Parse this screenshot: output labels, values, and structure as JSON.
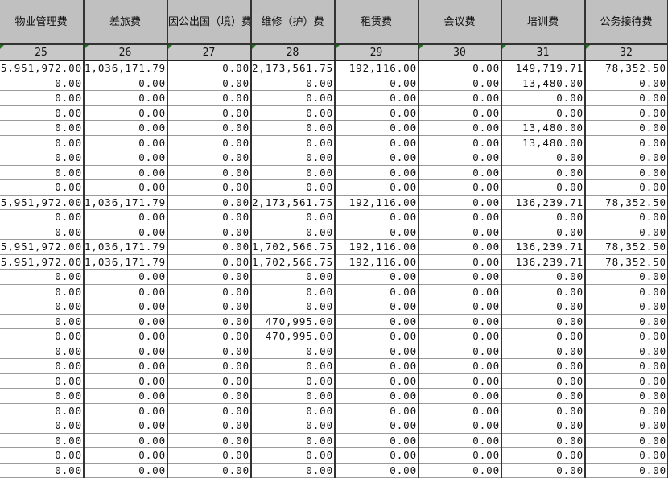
{
  "headers": [
    "物业管理费",
    "差旅费",
    "因公出国（境）费用",
    "维修（护）费",
    "租赁费",
    "会议费",
    "培训费",
    "公务接待费"
  ],
  "column_numbers": [
    "25",
    "26",
    "27",
    "28",
    "29",
    "30",
    "31",
    "32"
  ],
  "colors": {
    "header_bg": "#c0c0c0",
    "grid_line": "#333333",
    "marker": "#1a7a1a"
  },
  "rows": [
    [
      "5,951,972.00",
      "1,036,171.79",
      "0.00",
      "2,173,561.75",
      "192,116.00",
      "0.00",
      "149,719.71",
      "78,352.50"
    ],
    [
      "0.00",
      "0.00",
      "0.00",
      "0.00",
      "0.00",
      "0.00",
      "13,480.00",
      "0.00"
    ],
    [
      "0.00",
      "0.00",
      "0.00",
      "0.00",
      "0.00",
      "0.00",
      "0.00",
      "0.00"
    ],
    [
      "0.00",
      "0.00",
      "0.00",
      "0.00",
      "0.00",
      "0.00",
      "0.00",
      "0.00"
    ],
    [
      "0.00",
      "0.00",
      "0.00",
      "0.00",
      "0.00",
      "0.00",
      "13,480.00",
      "0.00"
    ],
    [
      "0.00",
      "0.00",
      "0.00",
      "0.00",
      "0.00",
      "0.00",
      "13,480.00",
      "0.00"
    ],
    [
      "0.00",
      "0.00",
      "0.00",
      "0.00",
      "0.00",
      "0.00",
      "0.00",
      "0.00"
    ],
    [
      "0.00",
      "0.00",
      "0.00",
      "0.00",
      "0.00",
      "0.00",
      "0.00",
      "0.00"
    ],
    [
      "0.00",
      "0.00",
      "0.00",
      "0.00",
      "0.00",
      "0.00",
      "0.00",
      "0.00"
    ],
    [
      "5,951,972.00",
      "1,036,171.79",
      "0.00",
      "2,173,561.75",
      "192,116.00",
      "0.00",
      "136,239.71",
      "78,352.50"
    ],
    [
      "0.00",
      "0.00",
      "0.00",
      "0.00",
      "0.00",
      "0.00",
      "0.00",
      "0.00"
    ],
    [
      "0.00",
      "0.00",
      "0.00",
      "0.00",
      "0.00",
      "0.00",
      "0.00",
      "0.00"
    ],
    [
      "5,951,972.00",
      "1,036,171.79",
      "0.00",
      "1,702,566.75",
      "192,116.00",
      "0.00",
      "136,239.71",
      "78,352.50"
    ],
    [
      "5,951,972.00",
      "1,036,171.79",
      "0.00",
      "1,702,566.75",
      "192,116.00",
      "0.00",
      "136,239.71",
      "78,352.50"
    ],
    [
      "0.00",
      "0.00",
      "0.00",
      "0.00",
      "0.00",
      "0.00",
      "0.00",
      "0.00"
    ],
    [
      "0.00",
      "0.00",
      "0.00",
      "0.00",
      "0.00",
      "0.00",
      "0.00",
      "0.00"
    ],
    [
      "0.00",
      "0.00",
      "0.00",
      "0.00",
      "0.00",
      "0.00",
      "0.00",
      "0.00"
    ],
    [
      "0.00",
      "0.00",
      "0.00",
      "470,995.00",
      "0.00",
      "0.00",
      "0.00",
      "0.00"
    ],
    [
      "0.00",
      "0.00",
      "0.00",
      "470,995.00",
      "0.00",
      "0.00",
      "0.00",
      "0.00"
    ],
    [
      "0.00",
      "0.00",
      "0.00",
      "0.00",
      "0.00",
      "0.00",
      "0.00",
      "0.00"
    ],
    [
      "0.00",
      "0.00",
      "0.00",
      "0.00",
      "0.00",
      "0.00",
      "0.00",
      "0.00"
    ],
    [
      "0.00",
      "0.00",
      "0.00",
      "0.00",
      "0.00",
      "0.00",
      "0.00",
      "0.00"
    ],
    [
      "0.00",
      "0.00",
      "0.00",
      "0.00",
      "0.00",
      "0.00",
      "0.00",
      "0.00"
    ],
    [
      "0.00",
      "0.00",
      "0.00",
      "0.00",
      "0.00",
      "0.00",
      "0.00",
      "0.00"
    ],
    [
      "0.00",
      "0.00",
      "0.00",
      "0.00",
      "0.00",
      "0.00",
      "0.00",
      "0.00"
    ],
    [
      "0.00",
      "0.00",
      "0.00",
      "0.00",
      "0.00",
      "0.00",
      "0.00",
      "0.00"
    ],
    [
      "0.00",
      "0.00",
      "0.00",
      "0.00",
      "0.00",
      "0.00",
      "0.00",
      "0.00"
    ],
    [
      "0.00",
      "0.00",
      "0.00",
      "0.00",
      "0.00",
      "0.00",
      "0.00",
      "0.00"
    ]
  ]
}
